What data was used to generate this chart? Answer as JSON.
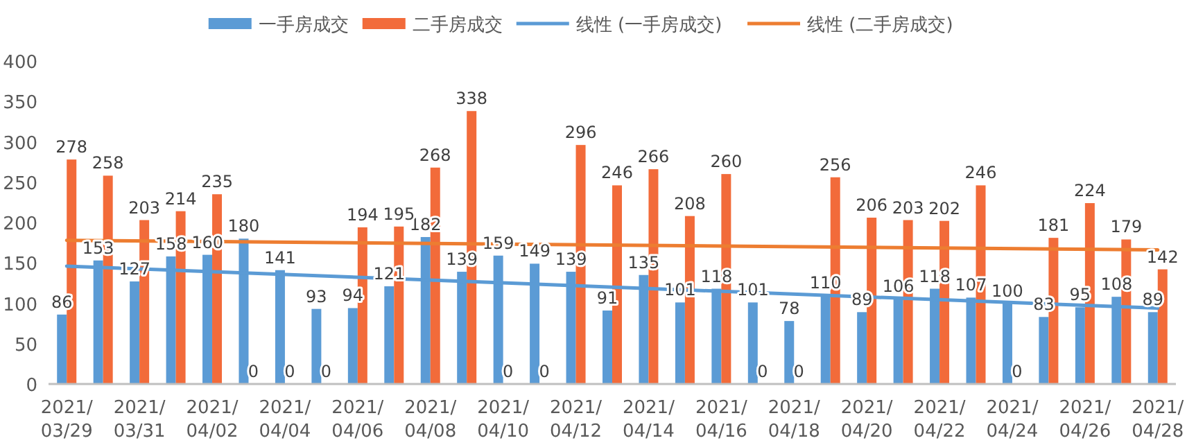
{
  "chart_data": {
    "type": "bar",
    "categories": [
      "2021/03/29",
      null,
      "2021/03/31",
      null,
      "2021/04/02",
      null,
      "2021/04/04",
      null,
      "2021/04/06",
      null,
      "2021/04/08",
      null,
      "2021/04/10",
      null,
      "2021/04/12",
      null,
      "2021/04/14",
      null,
      "2021/04/16",
      null,
      "2021/04/18",
      null,
      "2021/04/20",
      null,
      "2021/04/22",
      null,
      "2021/04/24",
      null,
      "2021/04/26",
      null,
      "2021/04/28"
    ],
    "series": [
      {
        "name": "一手房成交",
        "color": "#5b9bd5",
        "values": [
          86,
          153,
          127,
          158,
          160,
          180,
          141,
          93,
          94,
          121,
          182,
          139,
          159,
          149,
          139,
          91,
          135,
          101,
          118,
          101,
          78,
          110,
          89,
          106,
          118,
          107,
          100,
          83,
          95,
          108,
          89
        ],
        "value_labels": [
          "86",
          "153",
          "127",
          "158",
          "160",
          "180",
          "141",
          "93",
          "94",
          "121",
          "182",
          "139",
          "159",
          "149",
          "139",
          "91",
          "135",
          "101",
          "118",
          "101",
          "78",
          "110",
          "89",
          "106",
          "118",
          "107",
          "100",
          "83",
          "95",
          "108",
          "89"
        ]
      },
      {
        "name": "二手房成交",
        "color": "#f26b3a",
        "values": [
          278,
          258,
          203,
          214,
          235,
          0,
          0,
          0,
          194,
          195,
          268,
          338,
          0,
          0,
          296,
          246,
          266,
          208,
          260,
          0,
          0,
          256,
          206,
          203,
          202,
          246,
          0,
          181,
          224,
          179,
          142
        ],
        "value_labels": [
          "278",
          "258",
          "203",
          "214",
          "235",
          "0",
          "0",
          "0",
          "194",
          "195",
          "268",
          "338",
          "0",
          "0",
          "296",
          "246",
          "266",
          "208",
          "260",
          "0",
          "0",
          "256",
          "206",
          "203",
          "202",
          "246",
          "0",
          "181",
          "224",
          "179",
          "142"
        ]
      },
      {
        "name": "线性 (一手房成交)",
        "type": "line",
        "color": "#5b9bd5",
        "x": [
          "2021/03/29",
          "2021/04/28"
        ],
        "values": [
          146,
          94
        ]
      },
      {
        "name": "线性 (二手房成交)",
        "type": "line",
        "color": "#ed7d31",
        "x": [
          "2021/03/29",
          "2021/04/28"
        ],
        "values": [
          178,
          166
        ]
      }
    ],
    "ylim": [
      0,
      400
    ],
    "yticks": [
      0,
      50,
      100,
      150,
      200,
      250,
      300,
      350,
      400
    ],
    "legend": "top"
  }
}
